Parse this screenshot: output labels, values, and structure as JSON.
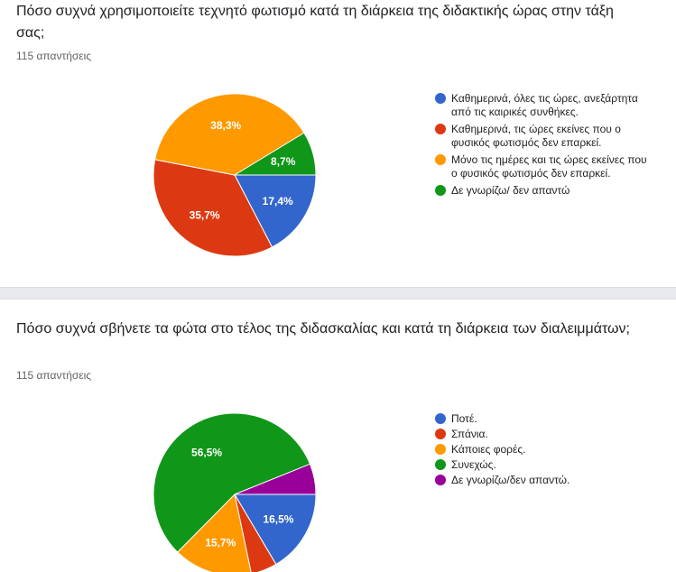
{
  "questions": [
    {
      "title": "Πόσο συχνά χρησιμοποιείτε τεχνητό φωτισμό κατά τη διάρκεια της διδακτικής ώρας στην τάξη σας;",
      "responses": "115 απαντήσεις"
    },
    {
      "title": "Πόσο συχνά σβήνετε τα φώτα στο τέλος της διδασκαλίας και κατά τη διάρκεια των διαλειμμάτων;",
      "responses": "115 απαντήσεις"
    }
  ],
  "chart_data": [
    {
      "type": "pie",
      "legend_position": "right",
      "slices": [
        {
          "label": "Καθημερινά, όλες τις ώρες, ανεξάρτητα από τις καιρικές συνθήκες.",
          "value": 17.4,
          "display": "17,4%",
          "color": "#3366cc"
        },
        {
          "label": "Καθημερινά, τις ώρες εκείνες που ο φυσικός φωτισμός δεν επαρκεί.",
          "value": 35.7,
          "display": "35,7%",
          "color": "#dc3912"
        },
        {
          "label": "Μόνο τις ημέρες και τις ώρες εκείνες που ο φυσικός φωτισμός δεν επαρκεί.",
          "value": 38.3,
          "display": "38,3%",
          "color": "#ff9900"
        },
        {
          "label": "Δε γνωρίζω/ δεν απαντώ",
          "value": 8.7,
          "display": "8,7%",
          "color": "#109618"
        }
      ]
    },
    {
      "type": "pie",
      "legend_position": "right",
      "slices": [
        {
          "label": "Ποτέ.",
          "value": 16.5,
          "display": "16,5%",
          "color": "#3366cc"
        },
        {
          "label": "Σπάνια.",
          "value": 5.2,
          "display": "",
          "color": "#dc3912"
        },
        {
          "label": "Κάποιες φορές.",
          "value": 15.7,
          "display": "15,7%",
          "color": "#ff9900"
        },
        {
          "label": "Συνεχώς.",
          "value": 56.5,
          "display": "56,5%",
          "color": "#109618"
        },
        {
          "label": "Δε γνωρίζω/δεν απαντώ.",
          "value": 6.1,
          "display": "",
          "color": "#990099"
        }
      ]
    }
  ]
}
